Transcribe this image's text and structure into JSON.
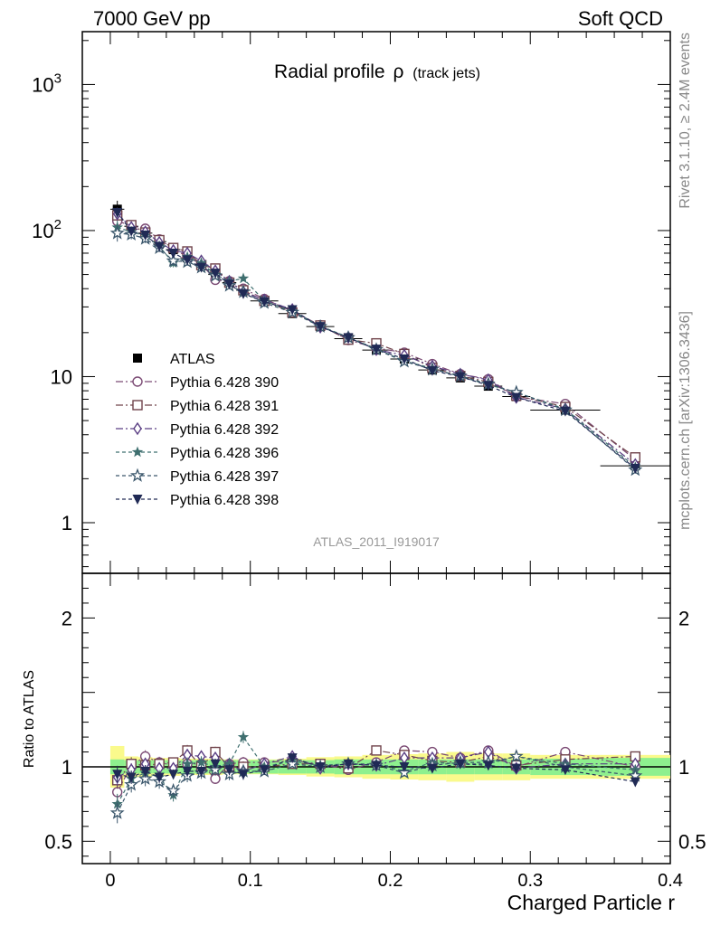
{
  "header": {
    "left": "7000 GeV pp",
    "right": "Soft QCD"
  },
  "side_labels": {
    "rivet": "Rivet 3.1.10, ≥ 2.4M events",
    "mcplots": "mcplots.cern.ch [arXiv:1306.3436]"
  },
  "colors": {
    "atlas": "#000000",
    "p390": "#7b4a74",
    "p391": "#70434b",
    "p392": "#5a3e83",
    "p396": "#3f6f6f",
    "p397": "#3a566b",
    "p398": "#202a55",
    "band_inner": "#8ef08e",
    "band_outer": "#fafa8c"
  },
  "chart_data": [
    {
      "type": "line",
      "title": "Radial profile",
      "title_symbol": "ρ",
      "title_suffix": "(track jets)",
      "watermark": "ATLAS_2011_I919017",
      "yscale": "log",
      "ylim": [
        0.45,
        2300
      ],
      "xlim": [
        -0.02,
        0.4
      ],
      "y_ticks": [
        {
          "v": 1,
          "label": "1"
        },
        {
          "v": 10,
          "label": "10"
        },
        {
          "v": 100,
          "label": "10",
          "sup": "2"
        },
        {
          "v": 1000,
          "label": "10",
          "sup": "3"
        }
      ],
      "legend_position": "center-left",
      "x": [
        0.005,
        0.015,
        0.025,
        0.035,
        0.045,
        0.055,
        0.065,
        0.075,
        0.085,
        0.095,
        0.11,
        0.13,
        0.15,
        0.17,
        0.19,
        0.21,
        0.23,
        0.25,
        0.27,
        0.29,
        0.325,
        0.375
      ],
      "x_half_widths": [
        0.005,
        0.005,
        0.005,
        0.005,
        0.005,
        0.005,
        0.005,
        0.005,
        0.005,
        0.005,
        0.01,
        0.01,
        0.01,
        0.01,
        0.01,
        0.01,
        0.01,
        0.01,
        0.01,
        0.01,
        0.025,
        0.025
      ],
      "series": [
        {
          "name": "ATLAS",
          "color_key": "atlas",
          "marker": "square-filled",
          "dash": "none",
          "values": [
            140,
            107,
            96,
            84,
            74,
            65,
            58,
            50,
            44,
            39,
            33,
            27,
            22,
            18.2,
            15.2,
            13.2,
            11.1,
            9.8,
            8.6,
            7.3,
            5.9,
            2.45
          ],
          "err": [
            20,
            8,
            6,
            5,
            4,
            3.5,
            3,
            2.5,
            2.2,
            2,
            1.5,
            1.2,
            1,
            0.9,
            0.8,
            0.7,
            0.6,
            0.55,
            0.5,
            0.45,
            0.35,
            0.2
          ]
        },
        {
          "name": "Pythia 6.428 390",
          "color_key": "p390",
          "marker": "circle-open",
          "dash": "8,3,2,3",
          "values": [
            116,
            108,
            103,
            87,
            75,
            66,
            59,
            46,
            45,
            40,
            34,
            28,
            22.5,
            17.8,
            15.7,
            14.6,
            12.2,
            10.4,
            9.6,
            7.3,
            6.5,
            2.7
          ],
          "err": [
            10,
            6,
            5,
            4,
            3,
            3,
            2.5,
            2.2,
            2,
            1.8,
            1,
            0.8,
            0.7,
            0.6,
            0.5,
            0.4,
            0.4,
            0.35,
            0.3,
            0.3,
            0.2,
            0.1
          ]
        },
        {
          "name": "Pythia 6.428 391",
          "color_key": "p391",
          "marker": "square-open",
          "dash": "8,3,2,3",
          "values": [
            127,
            109,
            97,
            86,
            76,
            72,
            58,
            55,
            44,
            39,
            33,
            27.5,
            22.4,
            17.9,
            16.9,
            14.3,
            11.5,
            10.1,
            9.2,
            7.4,
            6.2,
            2.8
          ],
          "err": [
            10,
            6,
            5,
            4,
            3,
            3,
            2.5,
            2.2,
            2,
            1.8,
            1,
            0.8,
            0.7,
            0.6,
            0.5,
            0.4,
            0.4,
            0.35,
            0.3,
            0.3,
            0.2,
            0.1
          ]
        },
        {
          "name": "Pythia 6.428 392",
          "color_key": "p392",
          "marker": "diamond-open",
          "dash": "8,3,2,3",
          "values": [
            130,
            105,
            98,
            83,
            73,
            70,
            62,
            53,
            45,
            38,
            33.5,
            28.8,
            21.8,
            18.6,
            15.3,
            14.0,
            11.8,
            10.4,
            9.5,
            7.2,
            6.0,
            2.5
          ],
          "err": [
            10,
            6,
            5,
            4,
            3,
            3,
            2.5,
            2.2,
            2,
            1.8,
            1,
            0.8,
            0.7,
            0.6,
            0.5,
            0.4,
            0.4,
            0.35,
            0.3,
            0.3,
            0.2,
            0.1
          ]
        },
        {
          "name": "Pythia 6.428 396",
          "color_key": "p396",
          "marker": "star-filled",
          "dash": "4,3",
          "values": [
            105,
            98,
            92,
            78,
            60,
            66,
            60,
            50,
            45,
            47,
            33,
            28,
            22.2,
            18.6,
            15.5,
            12.8,
            11.4,
            10.0,
            8.8,
            7.8,
            6.0,
            2.4
          ],
          "err": [
            12,
            7,
            6,
            5,
            4,
            3.5,
            3,
            2.5,
            2.2,
            2,
            1,
            0.8,
            0.7,
            0.6,
            0.5,
            0.4,
            0.4,
            0.35,
            0.3,
            0.3,
            0.2,
            0.1
          ]
        },
        {
          "name": "Pythia 6.428 397",
          "color_key": "p397",
          "marker": "star-open",
          "dash": "4,3",
          "values": [
            96,
            94,
            88,
            76,
            62,
            61,
            56,
            49,
            42,
            38,
            32,
            27.5,
            22,
            18.5,
            15.3,
            12.7,
            11.2,
            10.1,
            8.9,
            7.8,
            5.9,
            2.3
          ],
          "err": [
            12,
            7,
            6,
            5,
            4,
            3.5,
            3,
            2.5,
            2.2,
            2,
            1,
            0.8,
            0.7,
            0.6,
            0.5,
            0.4,
            0.4,
            0.35,
            0.3,
            0.3,
            0.2,
            0.1
          ]
        },
        {
          "name": "Pythia 6.428 398",
          "color_key": "p398",
          "marker": "triangle-down-filled",
          "dash": "4,3",
          "values": [
            133,
            99,
            93,
            78,
            70,
            63,
            56,
            51,
            43,
            37,
            32.5,
            28.7,
            22,
            18.5,
            15.4,
            13.2,
            11.0,
            10.0,
            8.7,
            7.2,
            5.8,
            2.35
          ],
          "err": [
            10,
            6,
            5,
            4,
            3,
            3,
            2.5,
            2.2,
            2,
            1.8,
            1,
            0.8,
            0.7,
            0.6,
            0.5,
            0.4,
            0.4,
            0.35,
            0.3,
            0.3,
            0.2,
            0.1
          ]
        }
      ]
    },
    {
      "type": "line",
      "ylabel": "Ratio to ATLAS",
      "xlabel": "Charged Particle r",
      "ylim": [
        0.35,
        2.3
      ],
      "xlim": [
        -0.02,
        0.4
      ],
      "reference_line": 1,
      "y_ticks": [
        {
          "v": 0.5,
          "label": "0.5"
        },
        {
          "v": 1,
          "label": "1"
        },
        {
          "v": 2,
          "label": "2"
        }
      ],
      "x_ticks": [
        {
          "v": 0,
          "label": "0"
        },
        {
          "v": 0.1,
          "label": "0.1"
        },
        {
          "v": 0.2,
          "label": "0.2"
        },
        {
          "v": 0.3,
          "label": "0.3"
        },
        {
          "v": 0.4,
          "label": "0.4"
        }
      ],
      "band_inner_halfwidth": [
        0.05,
        0.045,
        0.045,
        0.045,
        0.045,
        0.045,
        0.045,
        0.045,
        0.045,
        0.045,
        0.045,
        0.045,
        0.045,
        0.05,
        0.05,
        0.05,
        0.05,
        0.05,
        0.05,
        0.05,
        0.055,
        0.06
      ],
      "band_outer_halfwidth": [
        0.14,
        0.07,
        0.065,
        0.06,
        0.06,
        0.055,
        0.055,
        0.055,
        0.05,
        0.05,
        0.05,
        0.055,
        0.065,
        0.07,
        0.08,
        0.085,
        0.09,
        0.1,
        0.09,
        0.09,
        0.08,
        0.08
      ],
      "series_ratio": [
        {
          "name": "Pythia 6.428 390",
          "values": [
            0.83,
            1.01,
            1.07,
            1.03,
            1.01,
            1.02,
            1.02,
            0.92,
            1.02,
            1.03,
            1.03,
            1.04,
            1.02,
            0.98,
            1.03,
            1.11,
            1.1,
            1.06,
            1.11,
            1.0,
            1.1,
            1.0
          ]
        },
        {
          "name": "Pythia 6.428 391",
          "values": [
            0.91,
            1.02,
            1.01,
            1.02,
            1.03,
            1.11,
            1.0,
            1.1,
            1.0,
            1.0,
            1.0,
            1.02,
            1.02,
            0.99,
            1.11,
            1.08,
            1.04,
            1.03,
            1.07,
            1.01,
            1.05,
            1.07
          ]
        },
        {
          "name": "Pythia 6.428 392",
          "values": [
            0.93,
            0.98,
            1.02,
            0.99,
            0.99,
            1.08,
            1.07,
            1.06,
            1.02,
            0.97,
            1.02,
            1.07,
            0.99,
            1.02,
            1.01,
            1.06,
            1.06,
            1.06,
            1.1,
            0.99,
            1.02,
            1.02
          ]
        },
        {
          "name": "Pythia 6.428 396",
          "values": [
            0.75,
            0.92,
            0.96,
            0.93,
            0.81,
            1.02,
            1.03,
            1.0,
            1.02,
            1.2,
            1.0,
            1.04,
            1.01,
            1.02,
            1.02,
            0.97,
            1.03,
            1.02,
            1.02,
            1.07,
            1.02,
            0.98
          ]
        },
        {
          "name": "Pythia 6.428 397",
          "values": [
            0.69,
            0.88,
            0.92,
            0.9,
            0.84,
            0.94,
            0.96,
            0.98,
            0.95,
            0.97,
            0.97,
            1.02,
            1.0,
            1.02,
            1.01,
            0.96,
            1.01,
            1.03,
            1.03,
            1.07,
            1.0,
            0.94
          ]
        },
        {
          "name": "Pythia 6.428 398",
          "values": [
            0.95,
            0.93,
            0.97,
            0.93,
            0.95,
            0.97,
            0.97,
            1.02,
            0.98,
            0.95,
            0.98,
            1.06,
            1.0,
            1.02,
            1.01,
            1.0,
            0.99,
            1.02,
            1.01,
            0.99,
            0.98,
            0.9
          ]
        }
      ]
    }
  ]
}
